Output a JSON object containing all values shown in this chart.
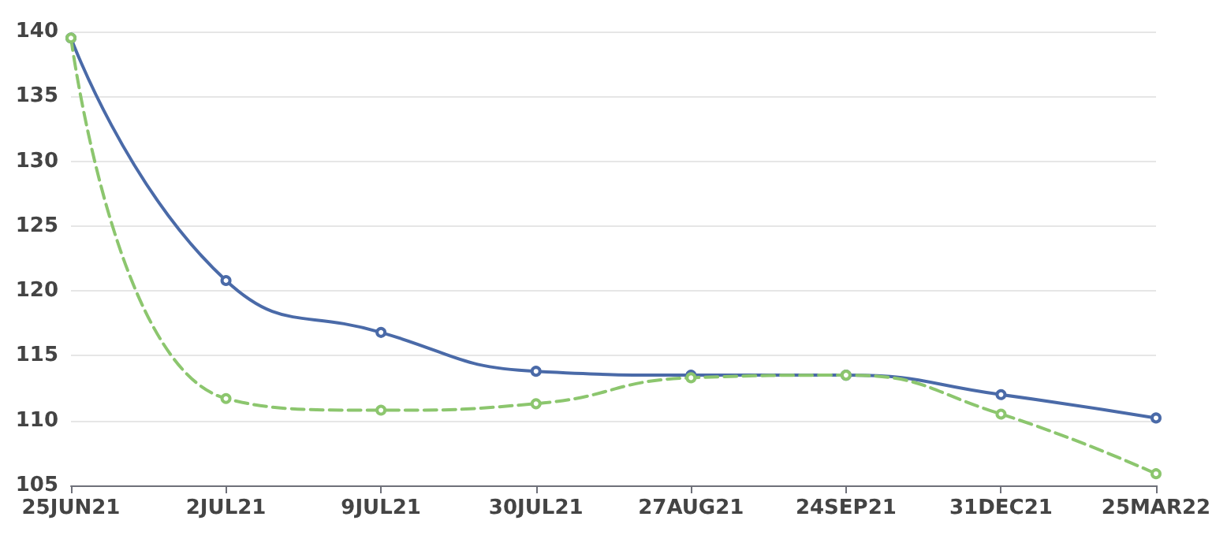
{
  "chart_data": {
    "type": "line",
    "categories": [
      "25JUN21",
      "2JUL21",
      "9JUL21",
      "30JUL21",
      "27AUG21",
      "24SEP21",
      "31DEC21",
      "25MAR22"
    ],
    "series": [
      {
        "color": "#4a6aa8",
        "line_style": "solid",
        "values": [
          139.5,
          120.8,
          116.8,
          113.8,
          113.5,
          113.5,
          112.0,
          110.2
        ]
      },
      {
        "color": "#8cc66e",
        "line_style": "dashed",
        "values": [
          139.5,
          111.7,
          110.8,
          111.3,
          113.3,
          113.5,
          110.5,
          105.9
        ]
      }
    ],
    "ylim": [
      105,
      140
    ],
    "yticks": [
      105,
      110,
      115,
      120,
      125,
      130,
      135,
      140
    ],
    "grid": "y",
    "marker": "circle"
  }
}
